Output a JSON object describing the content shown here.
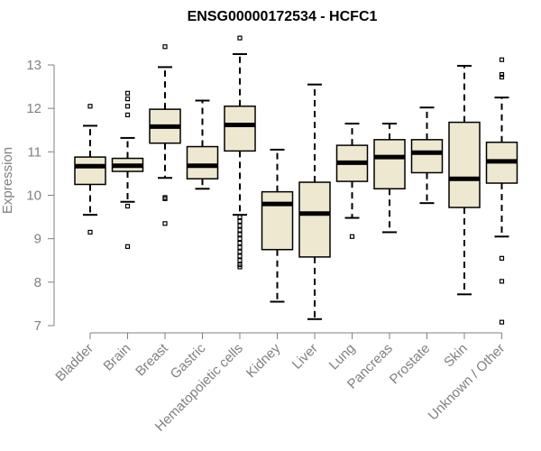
{
  "chart_data": {
    "type": "boxplot",
    "title": "ENSG00000172534 - HCFC1",
    "xlabel": "",
    "ylabel": "Expression",
    "ylim": [
      7,
      13
    ],
    "yticks": [
      7,
      8,
      9,
      10,
      11,
      12,
      13
    ],
    "box_fill": "#EEE8D0",
    "categories": [
      "Bladder",
      "Brain",
      "Breast",
      "Gastric",
      "Hematopoietic cells",
      "Kidney",
      "Liver",
      "Lung",
      "Pancreas",
      "Prostate",
      "Skin",
      "Unknown / Other"
    ],
    "series": [
      {
        "name": "Bladder",
        "min": 9.55,
        "q1": 10.25,
        "median": 10.67,
        "q3": 10.88,
        "max": 11.6,
        "outliers": [
          12.05,
          9.15
        ]
      },
      {
        "name": "Brain",
        "min": 9.85,
        "q1": 10.55,
        "median": 10.68,
        "q3": 10.85,
        "max": 11.32,
        "outliers": [
          12.35,
          12.22,
          12.05,
          11.85,
          9.75,
          8.82
        ]
      },
      {
        "name": "Breast",
        "min": 10.4,
        "q1": 11.2,
        "median": 11.58,
        "q3": 11.98,
        "max": 12.95,
        "outliers": [
          13.42,
          9.95,
          9.92,
          9.35
        ]
      },
      {
        "name": "Gastric",
        "min": 10.15,
        "q1": 10.38,
        "median": 10.68,
        "q3": 11.12,
        "max": 12.18,
        "outliers": []
      },
      {
        "name": "Hematopoietic cells",
        "min": 9.55,
        "q1": 11.02,
        "median": 11.62,
        "q3": 12.05,
        "max": 13.25,
        "outliers": [
          13.62,
          9.5,
          9.4,
          9.3,
          9.2,
          9.1,
          9.0,
          8.9,
          8.8,
          8.7,
          8.6,
          8.5,
          8.4,
          8.35
        ]
      },
      {
        "name": "Kidney",
        "min": 7.55,
        "q1": 8.75,
        "median": 9.8,
        "q3": 10.08,
        "max": 11.05,
        "outliers": []
      },
      {
        "name": "Liver",
        "min": 7.15,
        "q1": 8.58,
        "median": 9.58,
        "q3": 10.3,
        "max": 12.55,
        "outliers": []
      },
      {
        "name": "Lung",
        "min": 9.48,
        "q1": 10.32,
        "median": 10.75,
        "q3": 11.15,
        "max": 11.65,
        "outliers": [
          9.05
        ]
      },
      {
        "name": "Pancreas",
        "min": 9.15,
        "q1": 10.15,
        "median": 10.88,
        "q3": 11.28,
        "max": 11.65,
        "outliers": []
      },
      {
        "name": "Prostate",
        "min": 9.82,
        "q1": 10.52,
        "median": 10.98,
        "q3": 11.28,
        "max": 12.02,
        "outliers": []
      },
      {
        "name": "Skin",
        "min": 7.72,
        "q1": 9.72,
        "median": 10.38,
        "q3": 11.68,
        "max": 12.98,
        "outliers": []
      },
      {
        "name": "Unknown / Other",
        "min": 9.05,
        "q1": 10.28,
        "median": 10.78,
        "q3": 11.22,
        "max": 12.25,
        "outliers": [
          13.12,
          12.78,
          12.72,
          8.55,
          8.02,
          7.08
        ]
      }
    ]
  }
}
